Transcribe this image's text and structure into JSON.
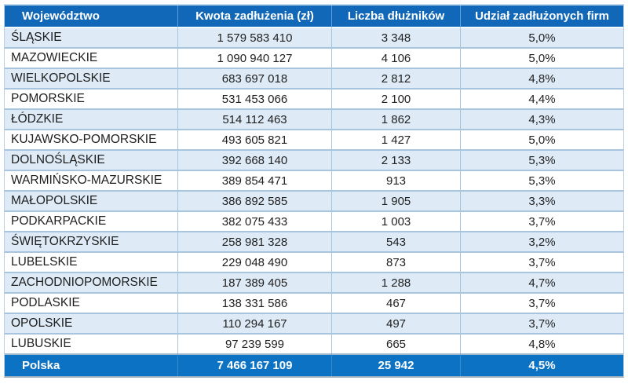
{
  "chart_data": {
    "type": "table",
    "columns": [
      "Województwo",
      "Kwota zadłużenia (zł)",
      "Liczba dłużników",
      "Udział zadłużonych firm"
    ],
    "rows": [
      {
        "wojewodztwo": "ŚLĄSKIE",
        "kwota": "1 579 583 410",
        "liczba": "3 348",
        "udzial": "5,0%"
      },
      {
        "wojewodztwo": "MAZOWIECKIE",
        "kwota": "1 090 940 127",
        "liczba": "4 106",
        "udzial": "5,0%"
      },
      {
        "wojewodztwo": "WIELKOPOLSKIE",
        "kwota": "683 697 018",
        "liczba": "2 812",
        "udzial": "4,8%"
      },
      {
        "wojewodztwo": "POMORSKIE",
        "kwota": "531 453 066",
        "liczba": "2 100",
        "udzial": "4,4%"
      },
      {
        "wojewodztwo": "ŁÓDZKIE",
        "kwota": "514 112 463",
        "liczba": "1 862",
        "udzial": "4,3%"
      },
      {
        "wojewodztwo": "KUJAWSKO-POMORSKIE",
        "kwota": "493 605 821",
        "liczba": "1 427",
        "udzial": "5,0%"
      },
      {
        "wojewodztwo": "DOLNOŚLĄSKIE",
        "kwota": "392 668 140",
        "liczba": "2 133",
        "udzial": "5,3%"
      },
      {
        "wojewodztwo": "WARMIŃSKO-MAZURSKIE",
        "kwota": "389 854 471",
        "liczba": "913",
        "udzial": "5,3%"
      },
      {
        "wojewodztwo": "MAŁOPOLSKIE",
        "kwota": "386 892 585",
        "liczba": "1 905",
        "udzial": "3,3%"
      },
      {
        "wojewodztwo": "PODKARPACKIE",
        "kwota": "382 075 433",
        "liczba": "1 003",
        "udzial": "3,7%"
      },
      {
        "wojewodztwo": "ŚWIĘTOKRZYSKIE",
        "kwota": "258 981 328",
        "liczba": "543",
        "udzial": "3,2%"
      },
      {
        "wojewodztwo": "LUBELSKIE",
        "kwota": "229 048 490",
        "liczba": "873",
        "udzial": "3,7%"
      },
      {
        "wojewodztwo": "ZACHODNIOPOMORSKIE",
        "kwota": "187 389 405",
        "liczba": "1 288",
        "udzial": "4,7%"
      },
      {
        "wojewodztwo": "PODLASKIE",
        "kwota": "138 331 586",
        "liczba": "467",
        "udzial": "3,7%"
      },
      {
        "wojewodztwo": "OPOLSKIE",
        "kwota": "110 294 167",
        "liczba": "497",
        "udzial": "3,7%"
      },
      {
        "wojewodztwo": "LUBUSKIE",
        "kwota": "97 239 599",
        "liczba": "665",
        "udzial": "4,8%"
      }
    ],
    "footer": {
      "wojewodztwo": "Polska",
      "kwota": "7 466 167 109",
      "liczba": "25 942",
      "udzial": "4,5%"
    }
  },
  "colors": {
    "header_bg": "#1268B8",
    "footer_bg": "#0C72C4",
    "header_text": "#FFFFFF",
    "row_alt_bg": "#DEEBF7",
    "row_bg": "#FFFFFF",
    "body_text": "#1F1F1F",
    "border_inner": "#A7C5DF"
  }
}
